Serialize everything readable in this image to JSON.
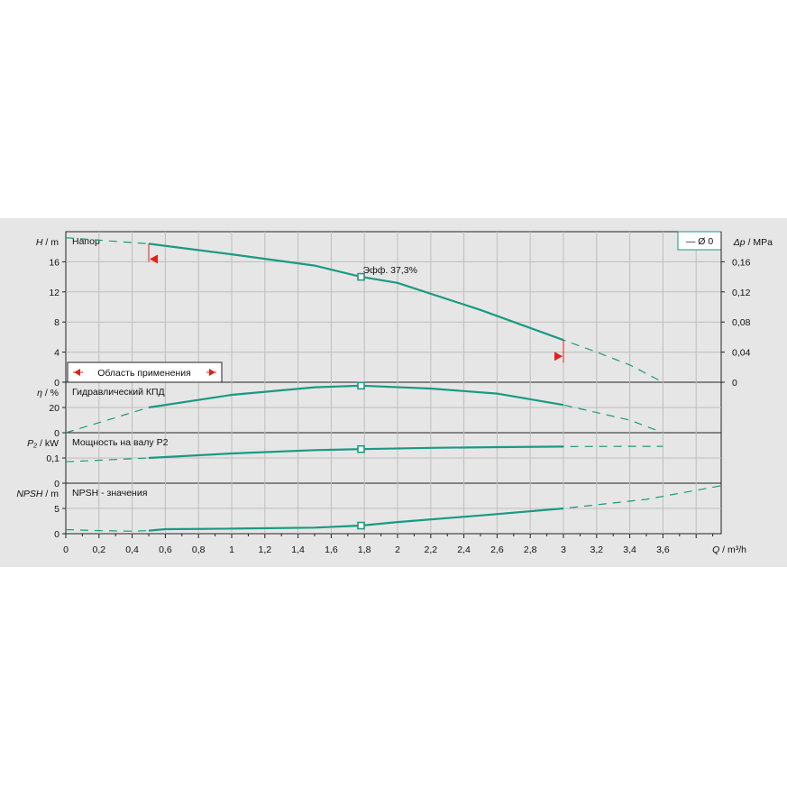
{
  "colors": {
    "curve": "#1a9a82",
    "accent": "#e0201a",
    "grid": "#bdbdbd",
    "panel": "#e6e6e6"
  },
  "legend": {
    "label": "— Ø 0"
  },
  "x_axis": {
    "ticks": [
      "0",
      "0,2",
      "0,4",
      "0,6",
      "0,8",
      "1",
      "1,2",
      "1,4",
      "1,6",
      "1,8",
      "2",
      "2,2",
      "2,4",
      "2,6",
      "2,8",
      "3",
      "3,2",
      "3,4",
      "3,6"
    ],
    "label_sym": "Q",
    "label_unit": " / m³/h"
  },
  "annotations": {
    "efficiency": "Эфф.  37,3%",
    "range": "Область применения"
  },
  "chart_data": [
    {
      "type": "line",
      "title": "Напор",
      "ylabel_sym": "H",
      "ylabel_unit": " / m",
      "ylim": [
        0,
        20
      ],
      "yticks": [
        "0",
        "4",
        "8",
        "12",
        "16"
      ],
      "y2label_sym": "Δp",
      "y2label_unit": " / MPa",
      "y2lim": [
        0,
        0.2
      ],
      "y2ticks": [
        "0",
        "0,04",
        "0,08",
        "0,12",
        "0,16"
      ],
      "curve": {
        "x": [
          0,
          0.5,
          1.0,
          1.5,
          1.78,
          2.0,
          2.5,
          3.0,
          3.2,
          3.4,
          3.6
        ],
        "y": [
          19.2,
          18.4,
          17.0,
          15.5,
          14.0,
          13.2,
          9.6,
          5.6,
          4.0,
          2.3,
          0
        ]
      },
      "operating_range": [
        0.5,
        3.0
      ],
      "duty_point": [
        1.78,
        14.0
      ]
    },
    {
      "type": "line",
      "title": "Гидравлический КПД",
      "ylabel_sym": "η",
      "ylabel_unit": " / %",
      "ylim": [
        0,
        40
      ],
      "yticks": [
        "0",
        "20"
      ],
      "curve": {
        "x": [
          0,
          0.5,
          1.0,
          1.5,
          1.78,
          2.2,
          2.6,
          3.0,
          3.4,
          3.6
        ],
        "y": [
          0,
          20,
          30,
          36,
          37.3,
          35,
          31,
          22,
          10,
          0
        ]
      },
      "operating_range": [
        0.5,
        3.0
      ],
      "duty_point": [
        1.78,
        37.3
      ]
    },
    {
      "type": "line",
      "title": "Мощность на валу P2",
      "ylabel_sym": "P₂",
      "ylabel_unit": " / kW",
      "ylim": [
        0,
        0.2
      ],
      "yticks": [
        "0",
        "0,1"
      ],
      "curve": {
        "x": [
          0,
          0.5,
          1.0,
          1.5,
          1.78,
          2.2,
          2.6,
          3.0,
          3.4,
          3.6
        ],
        "y": [
          0.085,
          0.1,
          0.118,
          0.131,
          0.135,
          0.14,
          0.143,
          0.145,
          0.146,
          0.146
        ]
      },
      "operating_range": [
        0.5,
        3.0
      ],
      "duty_point": [
        1.78,
        0.135
      ]
    },
    {
      "type": "line",
      "title": "NPSH - значения",
      "ylabel_sym": "NPSH",
      "ylabel_unit": " / m",
      "ylim": [
        0,
        10
      ],
      "yticks": [
        "0",
        "5"
      ],
      "curve": {
        "x": [
          0,
          0.2,
          0.4,
          0.5,
          0.6,
          1.0,
          1.5,
          1.78,
          2.0,
          2.5,
          3.0,
          3.5,
          3.95
        ],
        "y": [
          0.8,
          0.6,
          0.5,
          0.6,
          0.9,
          1.0,
          1.2,
          1.6,
          2.3,
          3.6,
          5.0,
          6.8,
          9.5
        ]
      },
      "operating_range": [
        0.5,
        3.0
      ],
      "duty_point": [
        1.78,
        1.6
      ]
    }
  ]
}
